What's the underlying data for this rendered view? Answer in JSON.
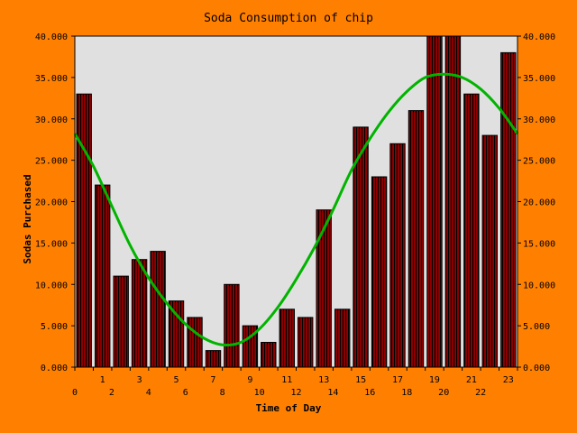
{
  "chart_data": {
    "type": "bar",
    "title": "Soda Consumption of chip",
    "xlabel": "Time of Day",
    "ylabel": "Sodas Purchased",
    "x_tick_labels": [
      "0",
      "1",
      "2",
      "3",
      "4",
      "5",
      "6",
      "7",
      "8",
      "9",
      "10",
      "11",
      "12",
      "13",
      "14",
      "15",
      "16",
      "17",
      "18",
      "19",
      "20",
      "21",
      "22",
      "23"
    ],
    "y_tick_labels": [
      "0.000",
      "5.000",
      "10.000",
      "15.000",
      "20.000",
      "25.000",
      "30.000",
      "35.000",
      "40.000"
    ],
    "ylim": [
      0,
      40
    ],
    "xlim": [
      0,
      24
    ],
    "grid": false,
    "dual_y_axis": true,
    "series": [
      {
        "type": "bar",
        "x": [
          0,
          1,
          2,
          3,
          4,
          5,
          6,
          7,
          8,
          9,
          10,
          11,
          12,
          13,
          14,
          15,
          16,
          17,
          18,
          19,
          20,
          21,
          22,
          23
        ],
        "values": [
          33,
          22,
          11,
          13,
          14,
          8,
          6,
          2,
          10,
          5,
          3,
          7,
          6,
          19,
          7,
          29,
          23,
          27,
          31,
          40,
          40,
          33,
          28,
          38
        ]
      },
      {
        "type": "line",
        "x": [
          0,
          1,
          2,
          3,
          4,
          5,
          6,
          7,
          8,
          9,
          10,
          11,
          12,
          13,
          14,
          15,
          16,
          17,
          18,
          19,
          20,
          21,
          22,
          23,
          24
        ],
        "values": [
          28.2,
          24.3,
          19.5,
          14.7,
          10.8,
          7.7,
          5.2,
          3.5,
          2.7,
          3.0,
          4.6,
          7.2,
          10.6,
          14.5,
          19.0,
          23.8,
          27.6,
          30.8,
          33.3,
          35.0,
          35.4,
          35.0,
          33.6,
          31.3,
          28.2
        ]
      }
    ],
    "colors": {
      "background": "#ff8000",
      "plot_area": "#e0e0e0",
      "bar_fill": "#8b0000",
      "bar_stripe": "#000000",
      "line": "#00b400"
    }
  }
}
